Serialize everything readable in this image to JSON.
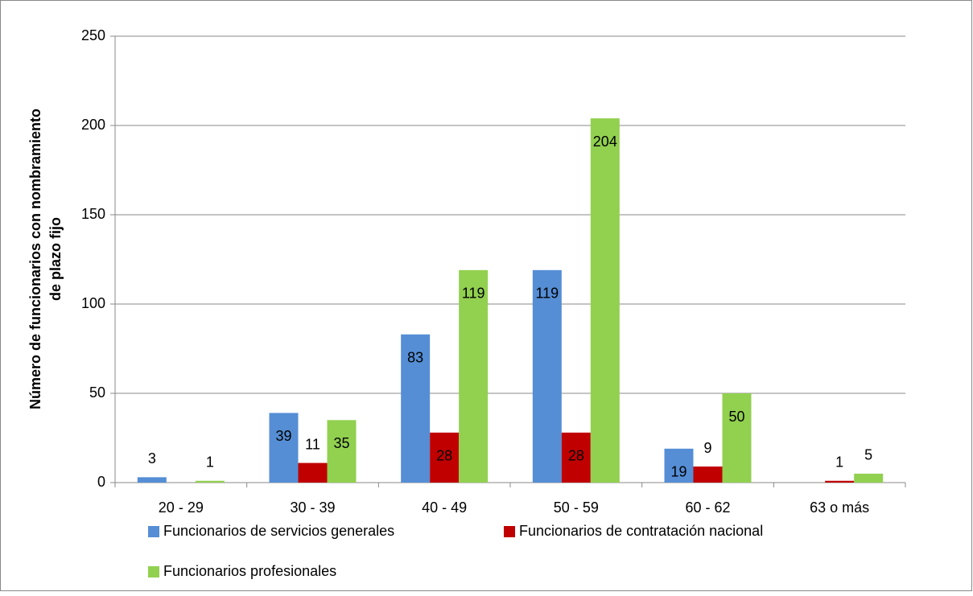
{
  "chart_data": {
    "type": "bar",
    "ylabel": [
      "Número de funcionarios con nombramiento",
      "de plazo fijo"
    ],
    "categories": [
      "20 - 29",
      "30 - 39",
      "40 - 49",
      "50 - 59",
      "60 - 62",
      "63 o más"
    ],
    "series": [
      {
        "name": "Funcionarios de servicios generales",
        "color": "#558ed5",
        "values": [
          3,
          39,
          83,
          119,
          19,
          null
        ]
      },
      {
        "name": "Funcionarios de contratación nacional",
        "color": "#c00000",
        "values": [
          null,
          11,
          28,
          28,
          9,
          1
        ]
      },
      {
        "name": "Funcionarios profesionales",
        "color": "#92d050",
        "values": [
          1,
          35,
          119,
          204,
          50,
          5
        ]
      }
    ],
    "ylim": [
      0,
      250
    ],
    "yticks": [
      0,
      50,
      100,
      150,
      200,
      250
    ],
    "grid": true,
    "legend": "bottom"
  }
}
